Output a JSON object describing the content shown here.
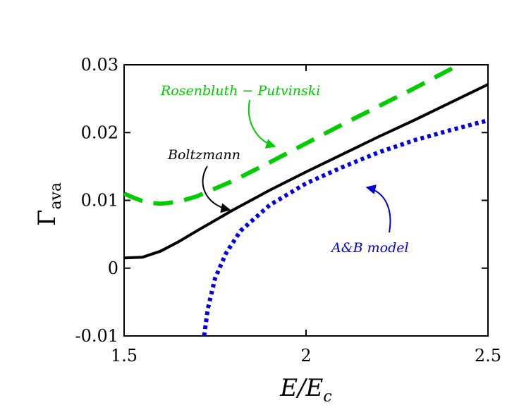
{
  "chart_data": {
    "type": "line",
    "xlabel": "E/E_c",
    "ylabel": "Γ_ava",
    "xlim": [
      1.5,
      2.5
    ],
    "ylim": [
      -0.01,
      0.03
    ],
    "x_ticks": [
      "1.5",
      "2",
      "2.5"
    ],
    "y_ticks": [
      "-0.01",
      "0",
      "0.01",
      "0.02",
      "0.03"
    ],
    "grid": false,
    "series": [
      {
        "name": "Rosenbluth − Putvinski",
        "color": "#00cc00",
        "style": "dashed",
        "x": [
          1.5,
          1.53,
          1.56,
          1.6,
          1.65,
          1.7,
          1.8,
          1.9,
          2.0,
          2.1,
          2.2,
          2.3,
          2.42
        ],
        "y": [
          0.011,
          0.0103,
          0.0097,
          0.0095,
          0.0098,
          0.0106,
          0.0129,
          0.0156,
          0.0184,
          0.0212,
          0.0239,
          0.0266,
          0.03
        ]
      },
      {
        "name": "Boltzmann",
        "color": "#000000",
        "style": "solid",
        "x": [
          1.5,
          1.55,
          1.6,
          1.65,
          1.7,
          1.8,
          1.9,
          2.0,
          2.1,
          2.2,
          2.3,
          2.4,
          2.5
        ],
        "y": [
          0.0015,
          0.0016,
          0.0025,
          0.0039,
          0.0055,
          0.0086,
          0.0115,
          0.0142,
          0.0168,
          0.0194,
          0.0219,
          0.0245,
          0.0271
        ]
      },
      {
        "name": "A&B model",
        "color": "#0000dd",
        "style": "dotted",
        "x": [
          1.72,
          1.73,
          1.75,
          1.78,
          1.82,
          1.9,
          2.0,
          2.1,
          2.2,
          2.3,
          2.4,
          2.5
        ],
        "y": [
          -0.01,
          -0.006,
          -0.0015,
          0.0022,
          0.0055,
          0.0093,
          0.0125,
          0.0149,
          0.0171,
          0.0189,
          0.0204,
          0.0218
        ]
      }
    ],
    "annotations": [
      {
        "text": "Rosenbluth − Putvinski",
        "color": "#00cc00"
      },
      {
        "text": "Boltzmann",
        "color": "#000000"
      },
      {
        "text": "A&B model",
        "color": "#0000dd"
      }
    ]
  }
}
